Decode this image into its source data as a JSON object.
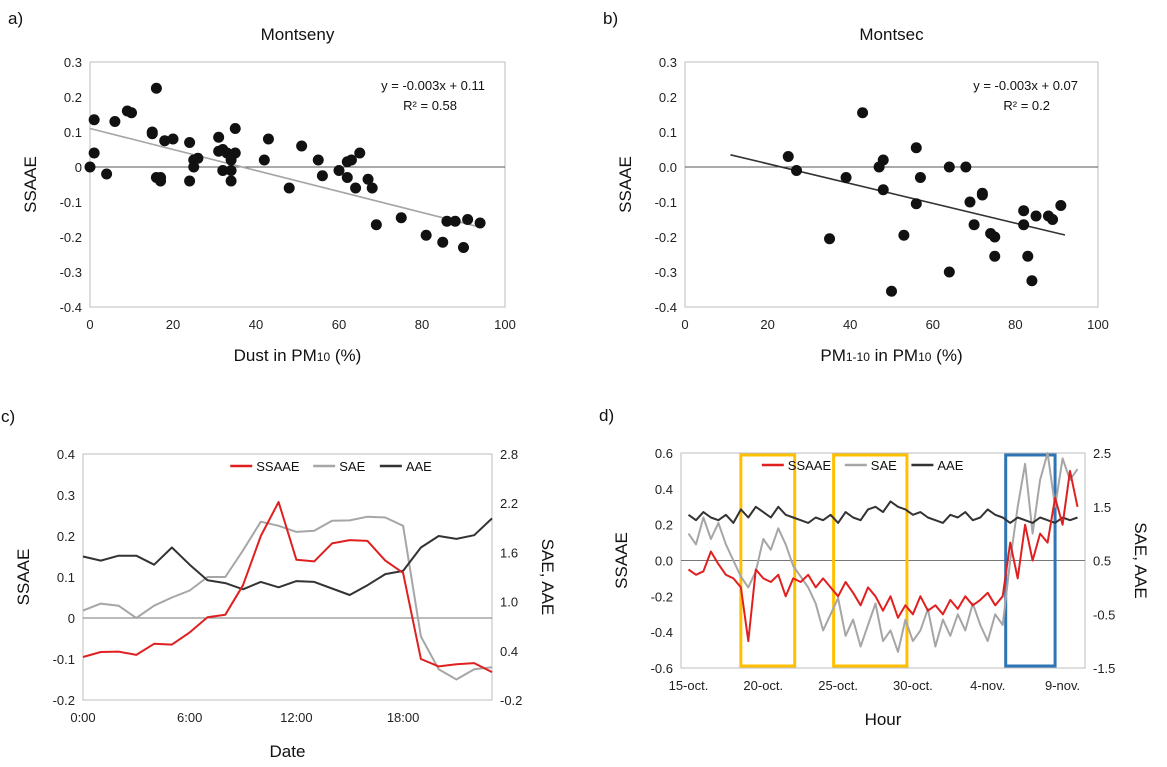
{
  "chart_data": [
    {
      "type": "scatter",
      "panel_label": "a)",
      "title": "Montseny",
      "xlabel": "Dust in PM",
      "xlabel_sub": "10",
      "xlabel_suffix": " (%)",
      "ylabel": "SSAAE",
      "xlim": [
        0,
        100
      ],
      "ylim": [
        -0.4,
        0.3
      ],
      "xticks": [
        "0",
        "20",
        "40",
        "60",
        "80",
        "100"
      ],
      "yticks": [
        "0.3",
        "0.2",
        "0.1",
        "0",
        "-0.1",
        "-0.2",
        "-0.3",
        "-0.4"
      ],
      "equation": "y = -0.003x + 0.11",
      "r2": "R² = 0.58",
      "trend": {
        "slope": -0.003,
        "intercept": 0.11,
        "x_range": [
          0,
          94
        ]
      },
      "points": [
        [
          0,
          0.0
        ],
        [
          1,
          0.04
        ],
        [
          1,
          0.135
        ],
        [
          4,
          -0.02
        ],
        [
          6,
          0.13
        ],
        [
          9,
          0.16
        ],
        [
          10,
          0.155
        ],
        [
          15,
          0.1
        ],
        [
          15,
          0.095
        ],
        [
          16,
          -0.03
        ],
        [
          16,
          0.225
        ],
        [
          17,
          -0.04
        ],
        [
          17,
          -0.03
        ],
        [
          18,
          0.075
        ],
        [
          20,
          0.08
        ],
        [
          24,
          -0.04
        ],
        [
          24,
          0.07
        ],
        [
          25,
          0.0
        ],
        [
          25,
          0.02
        ],
        [
          26,
          0.025
        ],
        [
          31,
          0.045
        ],
        [
          31,
          0.085
        ],
        [
          32,
          -0.01
        ],
        [
          32,
          0.05
        ],
        [
          33,
          0.04
        ],
        [
          34,
          -0.01
        ],
        [
          34,
          0.02
        ],
        [
          34,
          -0.04
        ],
        [
          35,
          0.04
        ],
        [
          35,
          0.11
        ],
        [
          42,
          0.02
        ],
        [
          43,
          0.08
        ],
        [
          48,
          -0.06
        ],
        [
          51,
          0.06
        ],
        [
          55,
          0.02
        ],
        [
          56,
          -0.025
        ],
        [
          60,
          -0.01
        ],
        [
          62,
          -0.03
        ],
        [
          62,
          0.015
        ],
        [
          63,
          0.02
        ],
        [
          64,
          -0.06
        ],
        [
          65,
          0.04
        ],
        [
          67,
          -0.035
        ],
        [
          68,
          -0.06
        ],
        [
          69,
          -0.165
        ],
        [
          75,
          -0.145
        ],
        [
          81,
          -0.195
        ],
        [
          85,
          -0.215
        ],
        [
          86,
          -0.155
        ],
        [
          88,
          -0.155
        ],
        [
          90,
          -0.23
        ],
        [
          91,
          -0.15
        ],
        [
          94,
          -0.16
        ]
      ]
    },
    {
      "type": "scatter",
      "panel_label": "b)",
      "title": "Montsec",
      "xlabel": "PM",
      "xlabel_sub": "1-10",
      "xlabel_mid": " in PM",
      "xlabel_sub2": "10",
      "xlabel_suffix": " (%)",
      "ylabel": "SSAAE",
      "xlim": [
        0,
        100
      ],
      "ylim": [
        -0.4,
        0.3
      ],
      "xticks": [
        "0",
        "20",
        "40",
        "60",
        "80",
        "100"
      ],
      "yticks": [
        "0.3",
        "0.2",
        "0.1",
        "0.0",
        "-0.1",
        "-0.2",
        "-0.3",
        "-0.4"
      ],
      "equation": "y = -0.003x + 0.07",
      "r2": "R² = 0.2",
      "trend": {
        "slope": -0.00283,
        "intercept": 0.066,
        "x_range": [
          11,
          92
        ]
      },
      "points": [
        [
          25,
          0.03
        ],
        [
          27,
          -0.01
        ],
        [
          35,
          -0.205
        ],
        [
          39,
          -0.03
        ],
        [
          43,
          0.155
        ],
        [
          47,
          0.0
        ],
        [
          48,
          0.02
        ],
        [
          48,
          -0.065
        ],
        [
          50,
          -0.355
        ],
        [
          53,
          -0.195
        ],
        [
          56,
          0.055
        ],
        [
          56,
          -0.105
        ],
        [
          57,
          -0.03
        ],
        [
          64,
          0.0
        ],
        [
          64,
          -0.3
        ],
        [
          68,
          0.0
        ],
        [
          69,
          -0.1
        ],
        [
          70,
          -0.165
        ],
        [
          72,
          -0.08
        ],
        [
          72,
          -0.075
        ],
        [
          74,
          -0.19
        ],
        [
          75,
          -0.2
        ],
        [
          75,
          -0.255
        ],
        [
          82,
          -0.125
        ],
        [
          82,
          -0.165
        ],
        [
          83,
          -0.255
        ],
        [
          84,
          -0.325
        ],
        [
          85,
          -0.14
        ],
        [
          88,
          -0.14
        ],
        [
          89,
          -0.15
        ],
        [
          91,
          -0.11
        ]
      ]
    },
    {
      "type": "line",
      "panel_label": "c)",
      "xlabel": "Date",
      "ylabel": "SSAAE",
      "ylabel_right": "SAE, AAE",
      "xlim": [
        0,
        23
      ],
      "ylim": [
        -0.2,
        0.4
      ],
      "ylim_right": [
        -0.2,
        2.8
      ],
      "xticks": [
        {
          "v": 0,
          "label": "0:00"
        },
        {
          "v": 6,
          "label": "6:00"
        },
        {
          "v": 12,
          "label": "12:00"
        },
        {
          "v": 18,
          "label": "18:00"
        }
      ],
      "yticks": [
        "-0.2",
        "-0.1",
        "0",
        "0.1",
        "0.2",
        "0.3",
        "0.4"
      ],
      "yticks_right": [
        "-0.2",
        "0.4",
        "1.0",
        "1.6",
        "2.2",
        "2.8"
      ],
      "legend": [
        "SSAAE",
        "SAE",
        "AAE"
      ],
      "colors": {
        "SSAAE": "#e02020",
        "SAE": "#a6a6a6",
        "AAE": "#333333"
      },
      "x": [
        0,
        1,
        2,
        3,
        4,
        5,
        6,
        7,
        8,
        9,
        10,
        11,
        12,
        13,
        14,
        15,
        16,
        17,
        18,
        19,
        20,
        21,
        22,
        23
      ],
      "series": [
        {
          "name": "SSAAE",
          "axis": "left",
          "values": [
            -0.095,
            -0.083,
            -0.082,
            -0.09,
            -0.063,
            -0.065,
            -0.035,
            0.002,
            0.008,
            0.08,
            0.2,
            0.283,
            0.142,
            0.138,
            0.182,
            0.19,
            0.188,
            0.14,
            0.11,
            -0.1,
            -0.118,
            -0.113,
            -0.11,
            -0.132
          ]
        },
        {
          "name": "SAE",
          "axis": "left",
          "values": [
            0.018,
            0.035,
            0.03,
            0.0,
            0.03,
            0.05,
            0.067,
            0.1,
            0.1,
            0.165,
            0.235,
            0.225,
            0.21,
            0.213,
            0.237,
            0.238,
            0.247,
            0.245,
            0.225,
            -0.045,
            -0.125,
            -0.15,
            -0.125,
            -0.12
          ]
        },
        {
          "name": "AAE",
          "axis": "left",
          "values": [
            0.15,
            0.14,
            0.152,
            0.152,
            0.13,
            0.172,
            0.13,
            0.092,
            0.085,
            0.07,
            0.088,
            0.075,
            0.09,
            0.088,
            0.072,
            0.056,
            0.08,
            0.107,
            0.115,
            0.172,
            0.2,
            0.193,
            0.202,
            0.243
          ]
        }
      ]
    },
    {
      "type": "line",
      "panel_label": "d)",
      "xlabel": "Hour",
      "ylabel": "SSAAE",
      "ylabel_right": "SAE, AAE",
      "xlim": [
        14.5,
        41.5
      ],
      "ylim": [
        -0.6,
        0.6
      ],
      "ylim_right": [
        -1.5,
        2.5
      ],
      "xticks": [
        {
          "v": 15,
          "label": "15-oct."
        },
        {
          "v": 20,
          "label": "20-oct."
        },
        {
          "v": 25,
          "label": "25-oct."
        },
        {
          "v": 30,
          "label": "30-oct."
        },
        {
          "v": 35,
          "label": "4-nov."
        },
        {
          "v": 40,
          "label": "9-nov."
        }
      ],
      "yticks": [
        "-0.6",
        "-0.4",
        "-0.2",
        "0.0",
        "0.2",
        "0.4",
        "0.6"
      ],
      "yticks_right": [
        "-1.5",
        "-0.5",
        "0.5",
        "1.5",
        "2.5"
      ],
      "legend": [
        "SSAAE",
        "SAE",
        "AAE"
      ],
      "colors": {
        "SSAAE": "#e02020",
        "SAE": "#a6a6a6",
        "AAE": "#333333",
        "box_yellow": "#ffc000",
        "box_blue": "#2e75b6"
      },
      "highlight_boxes": [
        {
          "x0": 18.5,
          "x1": 22.1,
          "color": "yellow"
        },
        {
          "x0": 24.7,
          "x1": 29.6,
          "color": "yellow"
        },
        {
          "x0": 36.2,
          "x1": 39.5,
          "color": "blue"
        }
      ],
      "x": [
        15,
        15.5,
        16,
        16.5,
        17,
        17.5,
        18,
        18.5,
        19,
        19.5,
        20,
        20.5,
        21,
        21.5,
        22,
        22.5,
        23,
        23.5,
        24,
        24.5,
        25,
        25.5,
        26,
        26.5,
        27,
        27.5,
        28,
        28.5,
        29,
        29.5,
        30,
        30.5,
        31,
        31.5,
        32,
        32.5,
        33,
        33.5,
        34,
        34.5,
        35,
        35.5,
        36,
        36.5,
        37,
        37.5,
        38,
        38.5,
        39,
        39.5,
        40,
        40.5,
        41
      ],
      "series": [
        {
          "name": "SSAAE",
          "axis": "left",
          "values": [
            -0.05,
            -0.08,
            -0.06,
            0.05,
            -0.02,
            -0.08,
            -0.1,
            -0.15,
            -0.45,
            -0.05,
            -0.1,
            -0.12,
            -0.08,
            -0.2,
            -0.1,
            -0.12,
            -0.08,
            -0.15,
            -0.1,
            -0.15,
            -0.2,
            -0.12,
            -0.18,
            -0.25,
            -0.15,
            -0.2,
            -0.28,
            -0.2,
            -0.32,
            -0.25,
            -0.3,
            -0.2,
            -0.28,
            -0.25,
            -0.3,
            -0.22,
            -0.27,
            -0.2,
            -0.25,
            -0.22,
            -0.18,
            -0.25,
            -0.2,
            0.1,
            -0.1,
            0.2,
            0.0,
            0.15,
            0.1,
            0.35,
            0.2,
            0.5,
            0.3
          ]
        },
        {
          "name": "SAE",
          "axis": "right",
          "values": [
            1.0,
            0.8,
            1.3,
            0.9,
            1.2,
            0.8,
            0.5,
            0.2,
            0.0,
            0.3,
            0.9,
            0.7,
            1.1,
            0.8,
            0.4,
            0.2,
            0.0,
            -0.3,
            -0.8,
            -0.5,
            -0.2,
            -0.9,
            -0.6,
            -1.1,
            -0.7,
            -0.3,
            -1.0,
            -0.8,
            -1.2,
            -0.6,
            -1.0,
            -0.8,
            -0.4,
            -1.1,
            -0.6,
            -0.9,
            -0.5,
            -0.8,
            -0.3,
            -0.7,
            -1.0,
            -0.5,
            -0.7,
            0.5,
            1.5,
            2.3,
            1.0,
            2.0,
            2.5,
            1.5,
            2.4,
            2.0,
            2.2
          ]
        },
        {
          "name": "AAE",
          "axis": "right",
          "values": [
            1.35,
            1.25,
            1.4,
            1.3,
            1.25,
            1.35,
            1.2,
            1.45,
            1.3,
            1.5,
            1.4,
            1.3,
            1.5,
            1.35,
            1.3,
            1.25,
            1.2,
            1.3,
            1.25,
            1.35,
            1.2,
            1.4,
            1.3,
            1.25,
            1.45,
            1.5,
            1.4,
            1.6,
            1.5,
            1.45,
            1.35,
            1.4,
            1.3,
            1.25,
            1.2,
            1.35,
            1.3,
            1.4,
            1.25,
            1.3,
            1.45,
            1.35,
            1.3,
            1.2,
            1.3,
            1.25,
            1.2,
            1.3,
            1.25,
            1.2,
            1.3,
            1.25,
            1.3
          ]
        }
      ]
    }
  ]
}
